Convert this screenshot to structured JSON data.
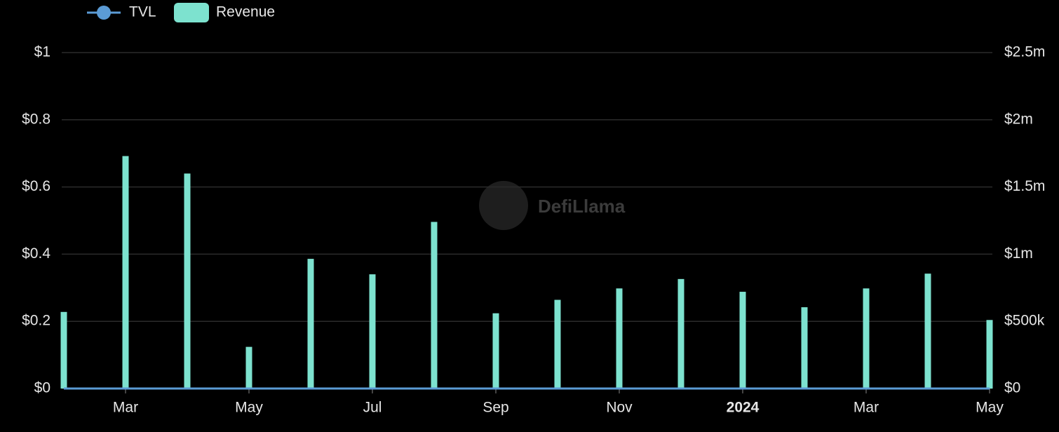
{
  "chart_data": {
    "type": "bar",
    "watermark": "DefiLlama",
    "categories": [
      null,
      "Mar",
      null,
      "May",
      null,
      "Jul",
      null,
      "Sep",
      null,
      "Nov",
      null,
      "2024",
      null,
      "Mar",
      null,
      "May"
    ],
    "series": [
      {
        "name": "TVL",
        "type": "line",
        "color": "#5b9bd5",
        "axis": "y",
        "values": [
          0,
          0,
          0,
          0,
          0,
          0,
          0,
          0,
          0,
          0,
          0,
          0,
          0,
          0,
          0,
          0
        ]
      },
      {
        "name": "Revenue",
        "type": "bar",
        "color": "#7de2cf",
        "axis": "y2",
        "values": [
          570000,
          1730000,
          1600000,
          310000,
          965000,
          850000,
          1240000,
          560000,
          660000,
          745000,
          815000,
          720000,
          605000,
          745000,
          855000,
          510000
        ]
      }
    ],
    "ylim": [
      0,
      1
    ],
    "yticks": [
      {
        "value": 0,
        "label": "$0"
      },
      {
        "value": 0.2,
        "label": "$0.2"
      },
      {
        "value": 0.4,
        "label": "$0.4"
      },
      {
        "value": 0.6,
        "label": "$0.6"
      },
      {
        "value": 0.8,
        "label": "$0.8"
      },
      {
        "value": 1,
        "label": "$1"
      }
    ],
    "y2lim": [
      0,
      2500000
    ],
    "y2ticks": [
      {
        "value": 0,
        "label": "$0"
      },
      {
        "value": 500000,
        "label": "$500k"
      },
      {
        "value": 1000000,
        "label": "$1m"
      },
      {
        "value": 1500000,
        "label": "$1.5m"
      },
      {
        "value": 2000000,
        "label": "$2m"
      },
      {
        "value": 2500000,
        "label": "$2.5m"
      }
    ],
    "grid": true
  }
}
